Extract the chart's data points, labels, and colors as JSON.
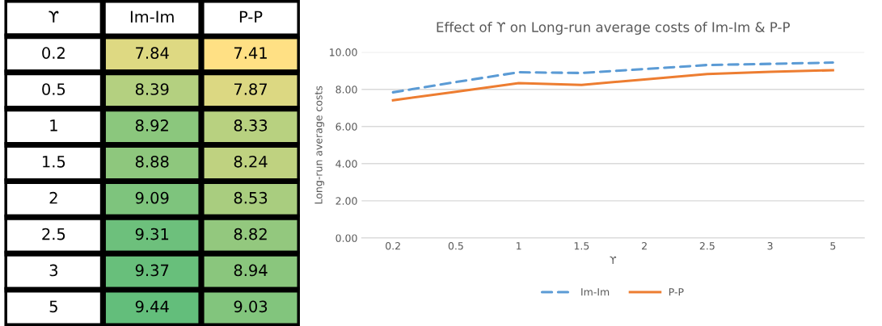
{
  "chart_data": [
    {
      "type": "heatmap",
      "ylabel": "ϒ",
      "categories": [
        "Im-Im",
        "P-P"
      ],
      "y_categories": [
        "0.2",
        "0.5",
        "1",
        "1.5",
        "2",
        "2.5",
        "3",
        "5"
      ],
      "cells": [
        [
          7.84,
          7.41
        ],
        [
          8.39,
          7.87
        ],
        [
          8.92,
          8.33
        ],
        [
          8.88,
          8.24
        ],
        [
          9.09,
          8.53
        ],
        [
          9.31,
          8.82
        ],
        [
          9.37,
          8.94
        ],
        [
          9.44,
          9.03
        ]
      ],
      "data_labels": true
    },
    {
      "type": "line",
      "title": "Effect of ϒ on Long-run average costs of Im-Im & P-P",
      "xlabel": "ϒ",
      "ylabel": "Long-run average costs",
      "categories": [
        "0.2",
        "0.5",
        "1",
        "1.5",
        "2",
        "2.5",
        "3",
        "5"
      ],
      "series": [
        {
          "name": "Im-Im",
          "color": "#5b9bd5",
          "line_style": "dashed",
          "values": [
            7.84,
            8.39,
            8.92,
            8.88,
            9.09,
            9.31,
            9.37,
            9.44
          ]
        },
        {
          "name": "P-P",
          "color": "#ed7d31",
          "line_style": "solid",
          "values": [
            7.41,
            7.87,
            8.33,
            8.24,
            8.53,
            8.82,
            8.94,
            9.03
          ]
        }
      ],
      "ylim": [
        0,
        10
      ],
      "yticks": [
        {
          "value": 0,
          "label": "0.00"
        },
        {
          "value": 2,
          "label": "2.00"
        },
        {
          "value": 4,
          "label": "4.00"
        },
        {
          "value": 6,
          "label": "6.00"
        },
        {
          "value": 8,
          "label": "8.00"
        },
        {
          "value": 10,
          "label": "10.00"
        }
      ],
      "grid": "y",
      "legend": "bottom",
      "marker": "none"
    }
  ]
}
